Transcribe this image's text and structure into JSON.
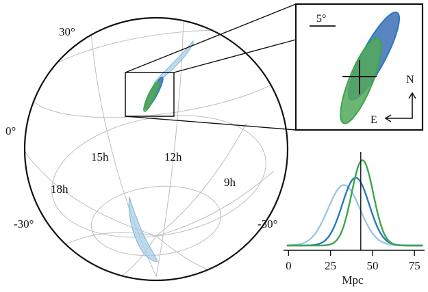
{
  "globe": {
    "dec_labels": [
      "30°",
      "0°",
      "-30°",
      "-30°"
    ],
    "ra_labels": [
      "15h",
      "12h",
      "9h",
      "18h"
    ]
  },
  "inset": {
    "scale_label": "5°",
    "north_label": "N",
    "east_label": "E"
  },
  "chart_data": {
    "type": "line",
    "title": "",
    "xlabel": "Mpc",
    "ylabel": "",
    "xlim": [
      -3,
      81
    ],
    "xticks": [
      0,
      25,
      50,
      75
    ],
    "tick_labels": [
      "0",
      "25",
      "50",
      "75"
    ],
    "marker_x": 43,
    "series": [
      {
        "color": "#9cc8e2",
        "mean": 33,
        "sd": 9.5,
        "peak": 0.66
      },
      {
        "color": "#2a78bc",
        "mean": 40,
        "sd": 8.0,
        "peak": 0.74
      },
      {
        "color": "#3aa64a",
        "mean": 44,
        "sd": 6.5,
        "peak": 0.93
      }
    ],
    "grid": false
  },
  "colors": {
    "light_blue_fill": "#a7cfe6",
    "light_blue_stroke": "#7fb3d5",
    "blue_fill": "#3d6fb5",
    "blue_stroke": "#2a78bc",
    "green_fill": "#52a85a",
    "green_stroke": "#3aa64a",
    "grid_line": "#bdbdbd",
    "frame": "#111111"
  }
}
